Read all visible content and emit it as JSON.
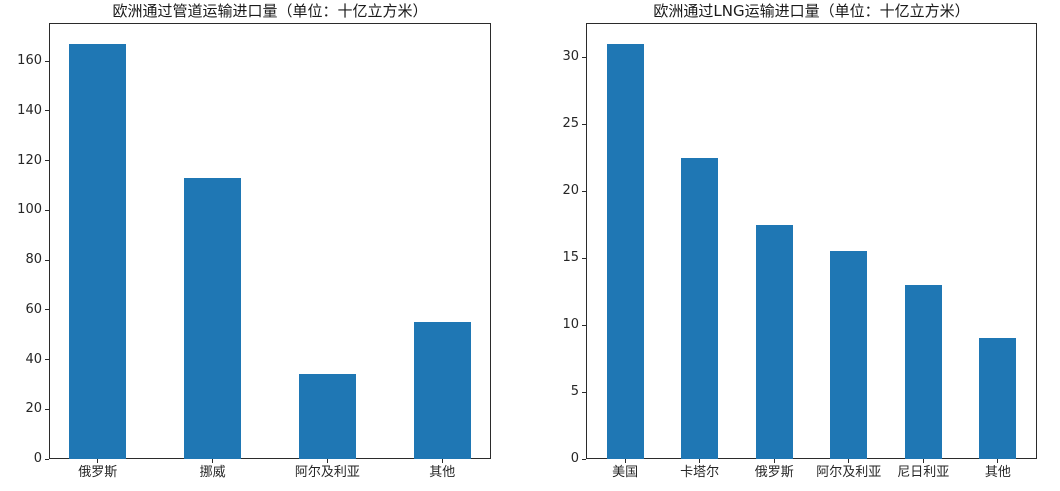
{
  "figure": {
    "background": "#ffffff",
    "axis_color": "#2b2b2b",
    "text_color": "#262626"
  },
  "chart_data": [
    {
      "type": "bar",
      "title": "欧洲通过管道运输进口量（单位：十亿立方米）",
      "categories": [
        "俄罗斯",
        "挪威",
        "阿尔及利亚",
        "其他"
      ],
      "values": [
        167,
        113,
        34,
        55
      ],
      "bar_color": "#1f77b4",
      "xlabel": "",
      "ylabel": "",
      "ylim": [
        0,
        175.35
      ],
      "yticks": [
        0,
        20,
        40,
        60,
        80,
        100,
        120,
        140,
        160
      ],
      "grid": false,
      "legend_position": "none"
    },
    {
      "type": "bar",
      "title": "欧洲通过LNG运输进口量（单位：十亿立方米）",
      "categories": [
        "美国",
        "卡塔尔",
        "俄罗斯",
        "阿尔及利亚",
        "尼日利亚",
        "其他"
      ],
      "values": [
        31,
        22.5,
        17.5,
        15.5,
        13,
        9
      ],
      "bar_color": "#1f77b4",
      "xlabel": "",
      "ylabel": "",
      "ylim": [
        0,
        32.55
      ],
      "yticks": [
        0,
        5,
        10,
        15,
        20,
        25,
        30
      ],
      "grid": false,
      "legend_position": "none"
    }
  ]
}
